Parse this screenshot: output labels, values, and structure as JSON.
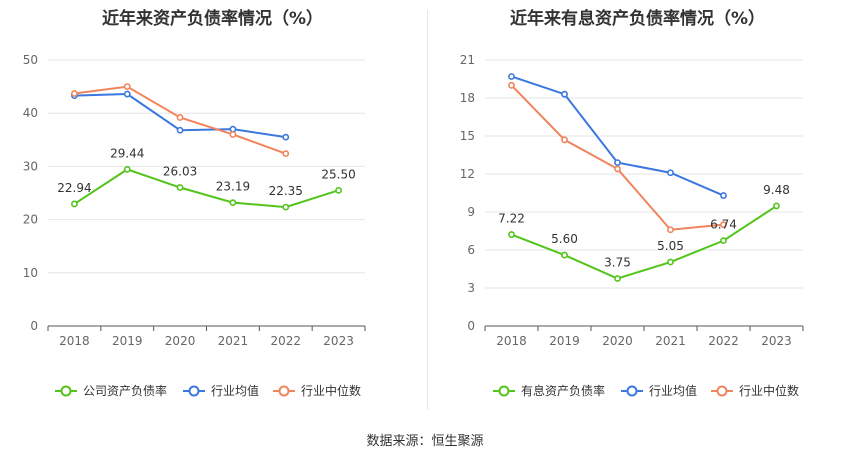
{
  "source": "数据来源：恒生聚源",
  "chart_data": [
    {
      "type": "line",
      "title": "近年来资产负债率情况（%）",
      "categories": [
        "2018",
        "2019",
        "2020",
        "2021",
        "2022",
        "2023"
      ],
      "ylim": [
        0,
        50
      ],
      "yticks": [
        0,
        10,
        20,
        30,
        40,
        50
      ],
      "grid": true,
      "legend_position": "bottom",
      "series": [
        {
          "name": "公司资产负债率",
          "color": "#52c41a",
          "values": [
            22.94,
            29.44,
            26.03,
            23.19,
            22.35,
            25.5
          ],
          "labels": [
            "22.94",
            "29.44",
            "26.03",
            "23.19",
            "22.35",
            "25.50"
          ]
        },
        {
          "name": "行业均值",
          "color": "#3a78e0",
          "values": [
            43.3,
            43.6,
            36.8,
            37.0,
            35.5,
            null
          ]
        },
        {
          "name": "行业中位数",
          "color": "#f0845c",
          "values": [
            43.7,
            45.0,
            39.2,
            36.0,
            32.4,
            null
          ]
        }
      ]
    },
    {
      "type": "line",
      "title": "近年来有息资产负债率情况（%）",
      "categories": [
        "2018",
        "2019",
        "2020",
        "2021",
        "2022",
        "2023"
      ],
      "ylim": [
        0,
        21
      ],
      "yticks": [
        0,
        3,
        6,
        9,
        12,
        15,
        18,
        21
      ],
      "grid": true,
      "legend_position": "bottom",
      "series": [
        {
          "name": "有息资产负债率",
          "color": "#52c41a",
          "values": [
            7.22,
            5.6,
            3.75,
            5.05,
            6.74,
            9.48
          ],
          "labels": [
            "7.22",
            "5.60",
            "3.75",
            "5.05",
            "6.74",
            "9.48"
          ]
        },
        {
          "name": "行业均值",
          "color": "#3a78e0",
          "values": [
            19.7,
            18.3,
            12.9,
            12.1,
            10.3,
            null
          ]
        },
        {
          "name": "行业中位数",
          "color": "#f0845c",
          "values": [
            19.0,
            14.7,
            12.4,
            7.6,
            8.0,
            null
          ]
        }
      ]
    }
  ]
}
